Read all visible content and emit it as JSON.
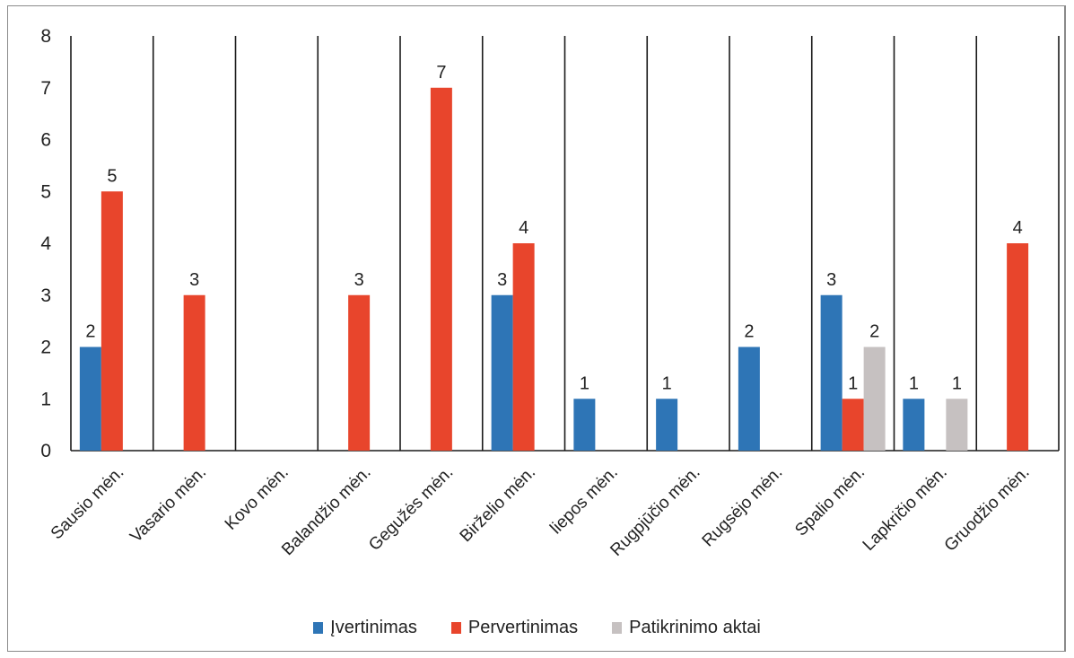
{
  "chart_data": {
    "type": "bar",
    "categories": [
      "Sausio mėn.",
      "Vasario mėn.",
      "Kovo mėn.",
      "Balandžio mėn.",
      "Gegužės mėn.",
      "Birželio mėn.",
      "liepos mėn.",
      "Rugpjūčio mėn.",
      "Rugsėjo mėn.",
      "Spalio mėn.",
      "Lapkričio mėn.",
      "Gruodžio mėn."
    ],
    "series": [
      {
        "name": "Įvertinimas",
        "color": "#2e75b6",
        "values": [
          2,
          null,
          null,
          null,
          null,
          3,
          1,
          1,
          2,
          3,
          1,
          null
        ]
      },
      {
        "name": "Pervertinimas",
        "color": "#e8452c",
        "values": [
          5,
          3,
          null,
          3,
          7,
          4,
          null,
          null,
          null,
          1,
          null,
          4
        ]
      },
      {
        "name": "Patikrinimo aktai",
        "color": "#c6c1c1",
        "values": [
          null,
          null,
          null,
          null,
          null,
          null,
          null,
          null,
          null,
          2,
          1,
          null
        ]
      }
    ],
    "yticks": [
      0,
      1,
      2,
      3,
      4,
      5,
      6,
      7,
      8
    ],
    "ylim": [
      0,
      8
    ],
    "grid": "vertical",
    "legend_position": "bottom"
  }
}
